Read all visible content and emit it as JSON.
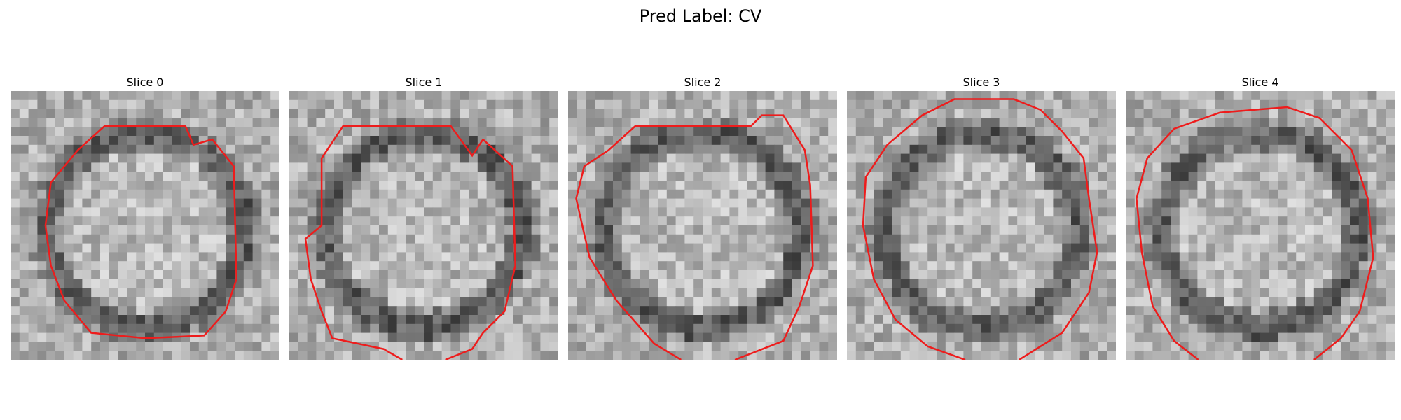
{
  "figure": {
    "title": "Pred Label: CV"
  },
  "slices": [
    {
      "title": "Slice 0",
      "seed": 11,
      "contour": [
        [
          0.35,
          0.13
        ],
        [
          0.65,
          0.13
        ],
        [
          0.68,
          0.2
        ],
        [
          0.75,
          0.18
        ],
        [
          0.83,
          0.28
        ],
        [
          0.84,
          0.7
        ],
        [
          0.8,
          0.82
        ],
        [
          0.72,
          0.91
        ],
        [
          0.5,
          0.92
        ],
        [
          0.3,
          0.9
        ],
        [
          0.2,
          0.78
        ],
        [
          0.15,
          0.65
        ],
        [
          0.13,
          0.5
        ],
        [
          0.15,
          0.34
        ],
        [
          0.25,
          0.22
        ]
      ],
      "contour_closed": true
    },
    {
      "title": "Slice 1",
      "seed": 23,
      "contour": [
        [
          0.42,
          1.0
        ],
        [
          0.35,
          0.96
        ],
        [
          0.16,
          0.92
        ],
        [
          0.12,
          0.82
        ],
        [
          0.08,
          0.7
        ],
        [
          0.06,
          0.55
        ],
        [
          0.12,
          0.5
        ],
        [
          0.12,
          0.25
        ],
        [
          0.2,
          0.13
        ],
        [
          0.6,
          0.13
        ],
        [
          0.68,
          0.24
        ],
        [
          0.72,
          0.18
        ],
        [
          0.83,
          0.28
        ],
        [
          0.84,
          0.65
        ],
        [
          0.8,
          0.82
        ],
        [
          0.72,
          0.9
        ],
        [
          0.68,
          0.96
        ],
        [
          0.58,
          1.0
        ]
      ],
      "contour_closed": false
    },
    {
      "title": "Slice 2",
      "seed": 37,
      "contour": [
        [
          0.42,
          1.0
        ],
        [
          0.32,
          0.94
        ],
        [
          0.18,
          0.78
        ],
        [
          0.08,
          0.62
        ],
        [
          0.03,
          0.4
        ],
        [
          0.06,
          0.28
        ],
        [
          0.15,
          0.22
        ],
        [
          0.25,
          0.13
        ],
        [
          0.68,
          0.13
        ],
        [
          0.72,
          0.09
        ],
        [
          0.8,
          0.09
        ],
        [
          0.88,
          0.22
        ],
        [
          0.9,
          0.35
        ],
        [
          0.91,
          0.65
        ],
        [
          0.86,
          0.8
        ],
        [
          0.8,
          0.93
        ],
        [
          0.62,
          1.0
        ]
      ],
      "contour_closed": false
    },
    {
      "title": "Slice 3",
      "seed": 53,
      "contour": [
        [
          0.44,
          1.0
        ],
        [
          0.3,
          0.95
        ],
        [
          0.18,
          0.85
        ],
        [
          0.1,
          0.7
        ],
        [
          0.06,
          0.5
        ],
        [
          0.07,
          0.32
        ],
        [
          0.15,
          0.2
        ],
        [
          0.28,
          0.09
        ],
        [
          0.4,
          0.03
        ],
        [
          0.62,
          0.03
        ],
        [
          0.72,
          0.07
        ],
        [
          0.8,
          0.15
        ],
        [
          0.88,
          0.25
        ],
        [
          0.9,
          0.4
        ],
        [
          0.93,
          0.6
        ],
        [
          0.9,
          0.75
        ],
        [
          0.8,
          0.9
        ],
        [
          0.64,
          1.0
        ]
      ],
      "contour_closed": false
    },
    {
      "title": "Slice 4",
      "seed": 71,
      "contour": [
        [
          0.27,
          1.0
        ],
        [
          0.18,
          0.93
        ],
        [
          0.1,
          0.8
        ],
        [
          0.06,
          0.6
        ],
        [
          0.04,
          0.4
        ],
        [
          0.08,
          0.25
        ],
        [
          0.18,
          0.14
        ],
        [
          0.35,
          0.08
        ],
        [
          0.6,
          0.06
        ],
        [
          0.72,
          0.1
        ],
        [
          0.84,
          0.22
        ],
        [
          0.9,
          0.4
        ],
        [
          0.92,
          0.62
        ],
        [
          0.87,
          0.82
        ],
        [
          0.8,
          0.92
        ],
        [
          0.7,
          1.0
        ]
      ],
      "contour_closed": false
    }
  ],
  "colors": {
    "contour": "#ee1c1c"
  }
}
